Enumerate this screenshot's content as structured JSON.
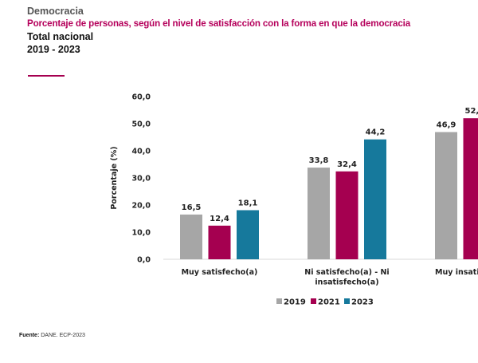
{
  "header": {
    "section": "Democracia",
    "title": "Porcentaje de personas, según el nivel de satisfacción con la forma en que la democracia",
    "subtitle": "Total nacional",
    "years": "2019 - 2023"
  },
  "footer": {
    "source_label": "Fuente:",
    "source_text": "DANE. ECP-2023"
  },
  "chart_data": {
    "type": "bar",
    "ylabel": "Porcentaje (%)",
    "ylim": [
      0,
      60
    ],
    "yticks": [
      "0,0",
      "10,0",
      "20,0",
      "30,0",
      "40,0",
      "50,0",
      "60,0"
    ],
    "categories": [
      [
        "Muy satisfecho(a)"
      ],
      [
        "Ni satisfecho(a) - Ni",
        "insatisfecho(a)"
      ],
      [
        "Muy insatis"
      ]
    ],
    "series": [
      {
        "name": "2019",
        "color": "#a6a6a6",
        "values": [
          16.5,
          33.8,
          46.9
        ],
        "labels": [
          "16,5",
          "33,8",
          "46,9"
        ]
      },
      {
        "name": "2021",
        "color": "#a50050",
        "values": [
          12.4,
          32.4,
          52.0
        ],
        "labels": [
          "12,4",
          "32,4",
          "52,"
        ]
      },
      {
        "name": "2023",
        "color": "#16799c",
        "values": [
          18.1,
          44.2,
          null
        ],
        "labels": [
          "18,1",
          "44,2",
          ""
        ]
      }
    ],
    "legend": "bottom",
    "grid": false
  }
}
